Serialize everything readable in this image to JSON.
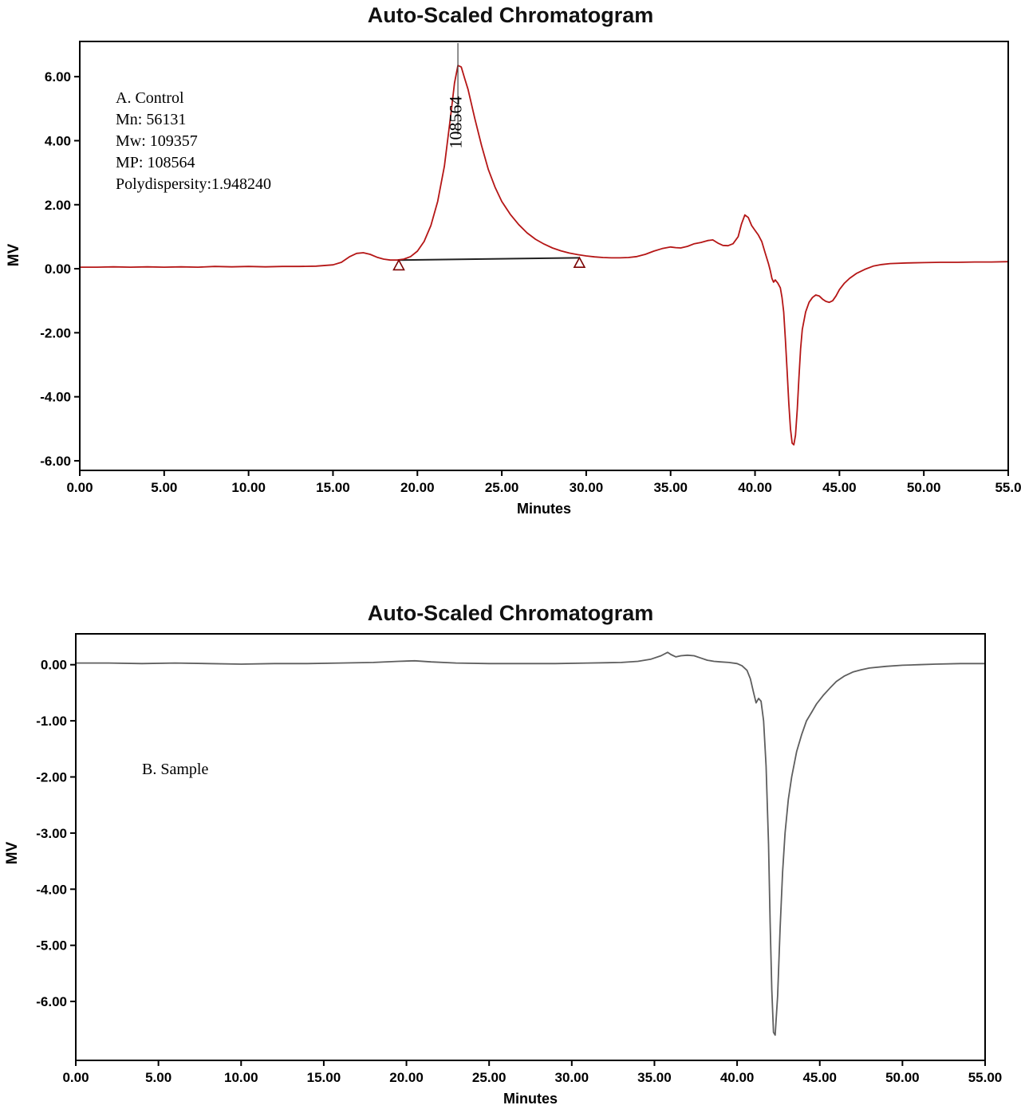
{
  "chart_data": [
    {
      "type": "line",
      "panel": "A",
      "title": "Auto-Scaled Chromatogram",
      "xlabel": "Minutes",
      "ylabel": "MV",
      "xlim": [
        0,
        55
      ],
      "ylim": [
        -6.3,
        7.1
      ],
      "xticks": [
        0,
        5,
        10,
        15,
        20,
        25,
        30,
        35,
        40,
        45,
        50,
        55
      ],
      "xtick_labels": [
        "0.00",
        "5.00",
        "10.00",
        "15.00",
        "20.00",
        "25.00",
        "30.00",
        "35.00",
        "40.00",
        "45.00",
        "50.00",
        "55.0"
      ],
      "yticks": [
        -6,
        -4,
        -2,
        0,
        2,
        4,
        6
      ],
      "ytick_labels": [
        "-6.00",
        "-4.00",
        "-2.00",
        "0.00",
        "2.00",
        "4.00",
        "6.00"
      ],
      "annotation_lines": [
        "A. Control",
        "Mn: 56131",
        "Mw: 109357",
        "MP: 108564",
        "Polydispersity:1.948240"
      ],
      "peak": {
        "label": "108564",
        "apex_minutes": 22.4,
        "apex_mv": 6.35
      },
      "peak_label_pos": {
        "x": 22.62,
        "y": 3.75
      },
      "apex_line": {
        "x": 22.4,
        "y1": 7.05,
        "y2": 4.2
      },
      "baseline": {
        "color": "#222222",
        "points": [
          [
            18.9,
            0.27
          ],
          [
            29.6,
            0.34
          ]
        ]
      },
      "integration_markers": [
        [
          18.9,
          0.24
        ],
        [
          29.6,
          0.32
        ]
      ],
      "marker_color": "#7a0000",
      "series": [
        {
          "name": "detector-signal",
          "color": "#b51616",
          "width": 1.8,
          "points": [
            [
              0,
              0.05
            ],
            [
              1,
              0.05
            ],
            [
              2,
              0.06
            ],
            [
              3,
              0.05
            ],
            [
              4,
              0.06
            ],
            [
              5,
              0.05
            ],
            [
              6,
              0.06
            ],
            [
              7,
              0.05
            ],
            [
              8,
              0.07
            ],
            [
              9,
              0.06
            ],
            [
              10,
              0.07
            ],
            [
              11,
              0.06
            ],
            [
              12,
              0.07
            ],
            [
              13,
              0.07
            ],
            [
              14,
              0.08
            ],
            [
              15,
              0.12
            ],
            [
              15.5,
              0.2
            ],
            [
              16,
              0.38
            ],
            [
              16.4,
              0.48
            ],
            [
              16.8,
              0.5
            ],
            [
              17.2,
              0.45
            ],
            [
              17.6,
              0.36
            ],
            [
              18,
              0.3
            ],
            [
              18.4,
              0.27
            ],
            [
              18.8,
              0.27
            ],
            [
              19.2,
              0.3
            ],
            [
              19.6,
              0.38
            ],
            [
              20,
              0.55
            ],
            [
              20.4,
              0.85
            ],
            [
              20.8,
              1.35
            ],
            [
              21.2,
              2.1
            ],
            [
              21.6,
              3.2
            ],
            [
              22,
              4.9
            ],
            [
              22.2,
              5.8
            ],
            [
              22.4,
              6.35
            ],
            [
              22.6,
              6.3
            ],
            [
              22.8,
              5.95
            ],
            [
              23,
              5.6
            ],
            [
              23.4,
              4.7
            ],
            [
              23.8,
              3.85
            ],
            [
              24.2,
              3.1
            ],
            [
              24.6,
              2.55
            ],
            [
              25,
              2.1
            ],
            [
              25.5,
              1.7
            ],
            [
              26,
              1.38
            ],
            [
              26.5,
              1.12
            ],
            [
              27,
              0.92
            ],
            [
              27.5,
              0.77
            ],
            [
              28,
              0.65
            ],
            [
              28.5,
              0.56
            ],
            [
              29,
              0.49
            ],
            [
              29.5,
              0.44
            ],
            [
              30,
              0.4
            ],
            [
              30.5,
              0.37
            ],
            [
              31,
              0.35
            ],
            [
              31.5,
              0.34
            ],
            [
              32,
              0.34
            ],
            [
              32.5,
              0.35
            ],
            [
              33,
              0.38
            ],
            [
              33.5,
              0.45
            ],
            [
              34,
              0.55
            ],
            [
              34.5,
              0.63
            ],
            [
              35,
              0.68
            ],
            [
              35.3,
              0.66
            ],
            [
              35.6,
              0.65
            ],
            [
              36,
              0.7
            ],
            [
              36.4,
              0.78
            ],
            [
              36.8,
              0.82
            ],
            [
              37.2,
              0.88
            ],
            [
              37.5,
              0.9
            ],
            [
              37.8,
              0.8
            ],
            [
              38.1,
              0.73
            ],
            [
              38.4,
              0.72
            ],
            [
              38.7,
              0.78
            ],
            [
              39,
              1.0
            ],
            [
              39.2,
              1.4
            ],
            [
              39.4,
              1.68
            ],
            [
              39.6,
              1.6
            ],
            [
              39.8,
              1.35
            ],
            [
              40,
              1.2
            ],
            [
              40.2,
              1.05
            ],
            [
              40.4,
              0.85
            ],
            [
              40.6,
              0.5
            ],
            [
              40.8,
              0.15
            ],
            [
              40.9,
              -0.05
            ],
            [
              41,
              -0.3
            ],
            [
              41.1,
              -0.42
            ],
            [
              41.2,
              -0.35
            ],
            [
              41.35,
              -0.45
            ],
            [
              41.5,
              -0.6
            ],
            [
              41.6,
              -0.9
            ],
            [
              41.7,
              -1.35
            ],
            [
              41.8,
              -2.2
            ],
            [
              41.9,
              -3.2
            ],
            [
              42,
              -4.2
            ],
            [
              42.1,
              -5.0
            ],
            [
              42.2,
              -5.45
            ],
            [
              42.3,
              -5.5
            ],
            [
              42.4,
              -5.2
            ],
            [
              42.5,
              -4.4
            ],
            [
              42.6,
              -3.4
            ],
            [
              42.7,
              -2.5
            ],
            [
              42.8,
              -1.9
            ],
            [
              43,
              -1.35
            ],
            [
              43.2,
              -1.05
            ],
            [
              43.4,
              -0.9
            ],
            [
              43.6,
              -0.82
            ],
            [
              43.8,
              -0.85
            ],
            [
              44,
              -0.95
            ],
            [
              44.2,
              -1.02
            ],
            [
              44.4,
              -1.05
            ],
            [
              44.6,
              -1.0
            ],
            [
              44.8,
              -0.85
            ],
            [
              45,
              -0.65
            ],
            [
              45.3,
              -0.45
            ],
            [
              45.6,
              -0.3
            ],
            [
              46,
              -0.15
            ],
            [
              46.5,
              -0.02
            ],
            [
              47,
              0.08
            ],
            [
              47.5,
              0.13
            ],
            [
              48,
              0.16
            ],
            [
              49,
              0.18
            ],
            [
              50,
              0.19
            ],
            [
              51,
              0.2
            ],
            [
              52,
              0.2
            ],
            [
              53,
              0.21
            ],
            [
              54,
              0.21
            ],
            [
              55,
              0.22
            ]
          ]
        }
      ]
    },
    {
      "type": "line",
      "panel": "B",
      "title": "Auto-Scaled Chromatogram",
      "xlabel": "Minutes",
      "ylabel": "MV",
      "xlim": [
        0,
        55
      ],
      "ylim": [
        -7.05,
        0.55
      ],
      "xticks": [
        0,
        5,
        10,
        15,
        20,
        25,
        30,
        35,
        40,
        45,
        50,
        55
      ],
      "xtick_labels": [
        "0.00",
        "5.00",
        "10.00",
        "15.00",
        "20.00",
        "25.00",
        "30.00",
        "35.00",
        "40.00",
        "45.00",
        "50.00",
        "55.00"
      ],
      "yticks": [
        0,
        -1,
        -2,
        -3,
        -4,
        -5,
        -6
      ],
      "ytick_labels": [
        "0.00",
        "-1.00",
        "-2.00",
        "-3.00",
        "-4.00",
        "-5.00",
        "-6.00"
      ],
      "annotation_lines": [
        "B. Sample"
      ],
      "series": [
        {
          "name": "detector-signal",
          "color": "#5e5e5e",
          "width": 1.8,
          "points": [
            [
              0,
              0.03
            ],
            [
              2,
              0.03
            ],
            [
              4,
              0.02
            ],
            [
              6,
              0.03
            ],
            [
              8,
              0.02
            ],
            [
              10,
              0.01
            ],
            [
              12,
              0.02
            ],
            [
              14,
              0.02
            ],
            [
              16,
              0.03
            ],
            [
              18,
              0.04
            ],
            [
              19.5,
              0.06
            ],
            [
              20.5,
              0.07
            ],
            [
              21.5,
              0.05
            ],
            [
              23,
              0.03
            ],
            [
              25,
              0.02
            ],
            [
              27,
              0.02
            ],
            [
              29,
              0.02
            ],
            [
              31,
              0.03
            ],
            [
              33,
              0.04
            ],
            [
              34,
              0.06
            ],
            [
              34.8,
              0.1
            ],
            [
              35.4,
              0.16
            ],
            [
              35.8,
              0.22
            ],
            [
              36,
              0.18
            ],
            [
              36.3,
              0.14
            ],
            [
              36.6,
              0.16
            ],
            [
              37,
              0.17
            ],
            [
              37.4,
              0.16
            ],
            [
              37.8,
              0.12
            ],
            [
              38.2,
              0.08
            ],
            [
              38.6,
              0.06
            ],
            [
              39,
              0.05
            ],
            [
              39.5,
              0.04
            ],
            [
              40,
              0.02
            ],
            [
              40.3,
              -0.02
            ],
            [
              40.6,
              -0.1
            ],
            [
              40.8,
              -0.25
            ],
            [
              41,
              -0.5
            ],
            [
              41.15,
              -0.68
            ],
            [
              41.3,
              -0.6
            ],
            [
              41.45,
              -0.65
            ],
            [
              41.6,
              -1.0
            ],
            [
              41.75,
              -1.8
            ],
            [
              41.9,
              -3.2
            ],
            [
              42,
              -4.6
            ],
            [
              42.1,
              -5.8
            ],
            [
              42.2,
              -6.55
            ],
            [
              42.3,
              -6.6
            ],
            [
              42.45,
              -5.9
            ],
            [
              42.6,
              -4.7
            ],
            [
              42.75,
              -3.7
            ],
            [
              42.9,
              -3.0
            ],
            [
              43.1,
              -2.4
            ],
            [
              43.3,
              -2.0
            ],
            [
              43.6,
              -1.55
            ],
            [
              43.9,
              -1.25
            ],
            [
              44.2,
              -1.0
            ],
            [
              44.5,
              -0.85
            ],
            [
              44.8,
              -0.7
            ],
            [
              45.2,
              -0.55
            ],
            [
              45.6,
              -0.42
            ],
            [
              46,
              -0.3
            ],
            [
              46.5,
              -0.2
            ],
            [
              47,
              -0.13
            ],
            [
              47.5,
              -0.09
            ],
            [
              48,
              -0.06
            ],
            [
              49,
              -0.03
            ],
            [
              50,
              -0.01
            ],
            [
              51,
              0.0
            ],
            [
              52,
              0.01
            ],
            [
              53.5,
              0.02
            ],
            [
              55,
              0.02
            ]
          ]
        }
      ]
    }
  ]
}
